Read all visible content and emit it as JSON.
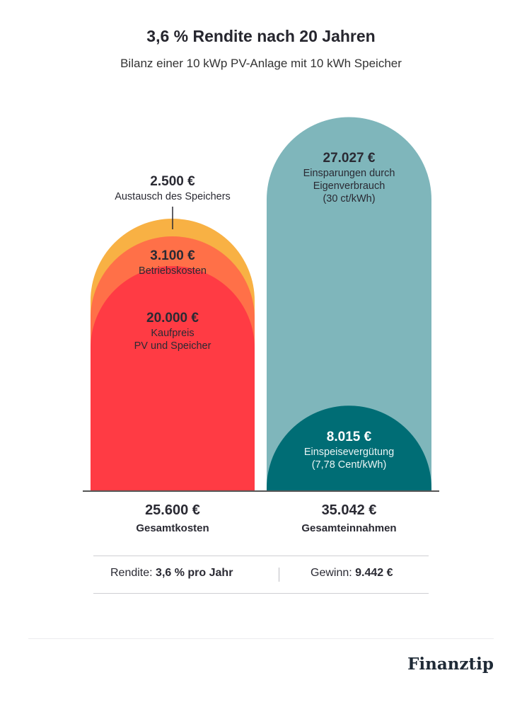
{
  "title": "3,6 % Rendite nach 20 Jahren",
  "subtitle": "Bilanz einer 10 kWp PV-Anlage mit 10 kWh Speicher",
  "colors": {
    "kaufpreis": "#ff3b44",
    "betrieb": "#ff7048",
    "speicher": "#f8b144",
    "einsparungen": "#7fb6bb",
    "einspeise": "#006d75",
    "baseline": "#555555"
  },
  "chart_data": {
    "type": "bar",
    "categories": [
      "Gesamtkosten",
      "Gesamteinnahmen"
    ],
    "series": [
      {
        "stack": "Gesamtkosten",
        "value": "20.000 €",
        "label": "Kaufpreis PV und Speicher",
        "amount": 20000
      },
      {
        "stack": "Gesamtkosten",
        "value": "3.100 €",
        "label": "Betriebskosten",
        "amount": 3100
      },
      {
        "stack": "Gesamtkosten",
        "value": "2.500 €",
        "label": "Austausch des Speichers",
        "amount": 2500
      },
      {
        "stack": "Gesamteinnahmen",
        "value": "8.015 €",
        "label": "Einspeisevergütung (7,78 Cent/kWh)",
        "amount": 8015
      },
      {
        "stack": "Gesamteinnahmen",
        "value": "27.027 €",
        "label": "Einsparungen durch Eigenverbrauch (30 ct/kWh)",
        "amount": 27027
      }
    ],
    "totals": [
      {
        "value": "25.600 €",
        "label": "Gesamtkosten"
      },
      {
        "value": "35.042 €",
        "label": "Gesamteinnahmen"
      }
    ]
  },
  "labels": {
    "speicher_value": "2.500 €",
    "speicher_desc": "Austausch des Speichers",
    "betrieb_value": "3.100 €",
    "betrieb_desc": "Betriebskosten",
    "kauf_value": "20.000 €",
    "kauf_desc_1": "Kaufpreis",
    "kauf_desc_2": "PV und Speicher",
    "einspar_value": "27.027 €",
    "einspar_desc_1": "Einsparungen durch",
    "einspar_desc_2": "Eigenverbrauch",
    "einspar_desc_3": "(30 ct/kWh)",
    "einspeise_value": "8.015 €",
    "einspeise_desc_1": "Einspeisevergütung",
    "einspeise_desc_2": "(7,78 Cent/kWh)"
  },
  "totals": {
    "cost_value": "25.600 €",
    "cost_label": "Gesamtkosten",
    "income_value": "35.042 €",
    "income_label": "Gesamteinnahmen"
  },
  "summary": {
    "rendite_label": "Rendite: ",
    "rendite_value": "3,6 % pro Jahr",
    "gewinn_label": "Gewinn: ",
    "gewinn_value": "9.442 €"
  },
  "brand": "Finanztip"
}
